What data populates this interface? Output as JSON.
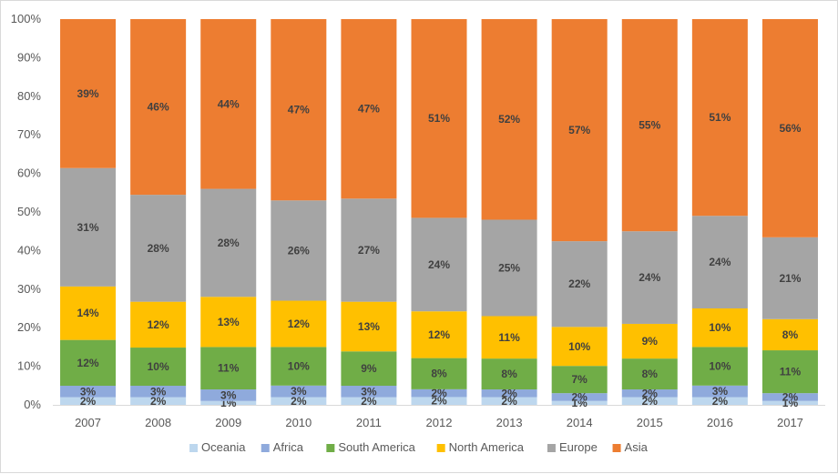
{
  "chart_data": {
    "type": "bar",
    "stacked": true,
    "percent_stacked": true,
    "categories": [
      "2007",
      "2008",
      "2009",
      "2010",
      "2011",
      "2012",
      "2013",
      "2014",
      "2015",
      "2016",
      "2017"
    ],
    "series": [
      {
        "name": "Oceania",
        "color": "#bdd7ee",
        "values": [
          2,
          2,
          1,
          2,
          2,
          2,
          2,
          1,
          2,
          2,
          1
        ]
      },
      {
        "name": "Africa",
        "color": "#8faadc",
        "values": [
          3,
          3,
          3,
          3,
          3,
          2,
          2,
          2,
          2,
          3,
          2
        ]
      },
      {
        "name": "South America",
        "color": "#70ad47",
        "values": [
          12,
          10,
          11,
          10,
          9,
          8,
          8,
          7,
          8,
          10,
          11
        ]
      },
      {
        "name": "North America",
        "color": "#ffc000",
        "values": [
          14,
          12,
          13,
          12,
          13,
          12,
          11,
          10,
          9,
          10,
          8
        ]
      },
      {
        "name": "Europe",
        "color": "#a5a5a5",
        "values": [
          31,
          28,
          28,
          26,
          27,
          24,
          25,
          22,
          24,
          24,
          21
        ]
      },
      {
        "name": "Asia",
        "color": "#ed7d31",
        "values": [
          39,
          46,
          44,
          47,
          47,
          51,
          52,
          57,
          55,
          51,
          56
        ]
      }
    ],
    "yaxis": {
      "min": 0,
      "max": 100,
      "step": 10,
      "unit": "%"
    },
    "grid": false,
    "legend": "bottom",
    "data_labels": true
  }
}
